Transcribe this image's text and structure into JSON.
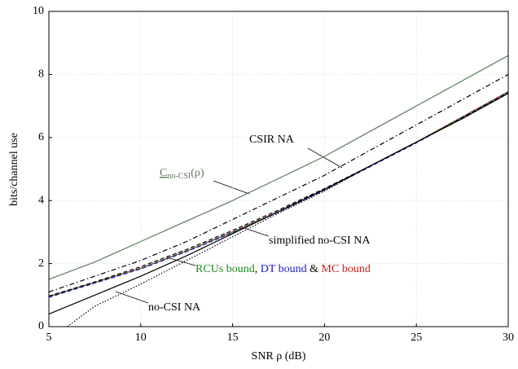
{
  "chart_data": {
    "type": "line",
    "x_label": "SNR ρ (dB)",
    "y_label": "bits/channel use",
    "xlim": [
      5,
      30
    ],
    "ylim": [
      0,
      10
    ],
    "xticks": [
      5,
      10,
      15,
      20,
      25,
      30
    ],
    "yticks": [
      0,
      2,
      4,
      6,
      8,
      10
    ],
    "grid": true,
    "x": [
      5,
      7.5,
      10,
      12.5,
      15,
      17.5,
      20,
      22.5,
      25,
      27.5,
      30
    ],
    "series": [
      {
        "color": "#5a7a5a",
        "dash": "solid",
        "values": [
          1.5,
          2.05,
          2.7,
          3.35,
          4.0,
          4.7,
          5.4,
          6.2,
          7.0,
          7.8,
          8.6
        ]
      },
      {
        "color": "#000000",
        "dash": "dashdot",
        "values": [
          1.1,
          1.6,
          2.1,
          2.7,
          3.4,
          4.1,
          4.8,
          5.6,
          6.4,
          7.2,
          8.0
        ]
      },
      {
        "color": "#1a8a1a",
        "dash": "solid",
        "values": [
          0.95,
          1.4,
          1.85,
          2.4,
          3.0,
          3.65,
          4.35,
          5.1,
          5.85,
          6.65,
          7.45
        ]
      },
      {
        "color": "#1a1acc",
        "dash": "dashed",
        "values": [
          0.93,
          1.38,
          1.83,
          2.38,
          2.98,
          3.63,
          4.33,
          5.08,
          5.83,
          6.63,
          7.43
        ]
      },
      {
        "color": "#cc1a1a",
        "dash": "dotted",
        "values": [
          0.96,
          1.41,
          1.86,
          2.41,
          3.01,
          3.66,
          4.36,
          5.11,
          5.86,
          6.66,
          7.46
        ]
      },
      {
        "color": "#000000",
        "dash": "dashed",
        "values": [
          0.97,
          1.42,
          1.9,
          2.45,
          3.05,
          3.7,
          4.38,
          5.1,
          5.85,
          6.62,
          7.42
        ]
      },
      {
        "color": "#000000",
        "dash": "solid",
        "values": [
          0.4,
          1.0,
          1.6,
          2.25,
          2.95,
          3.65,
          4.35,
          5.1,
          5.85,
          6.6,
          7.4
        ]
      },
      {
        "color": "#000000",
        "dash": "dotted",
        "x": [
          6,
          7.5,
          10,
          12.5,
          15,
          17.5,
          20,
          22.5,
          25,
          27.5,
          30
        ],
        "values": [
          0,
          0.65,
          1.35,
          2.1,
          2.85,
          3.6,
          4.3,
          5.1,
          5.85,
          6.6,
          7.4
        ]
      }
    ],
    "annotations": {
      "csir": "CSIR NA",
      "cap": [
        "C",
        "no-CSI",
        "(ρ)"
      ],
      "simplified": "simplified no-CSI NA",
      "bounds": [
        "RCUs bound",
        ", ",
        "DT bound",
        " & ",
        "MC bound"
      ],
      "nocsi": "no-CSI NA"
    }
  }
}
